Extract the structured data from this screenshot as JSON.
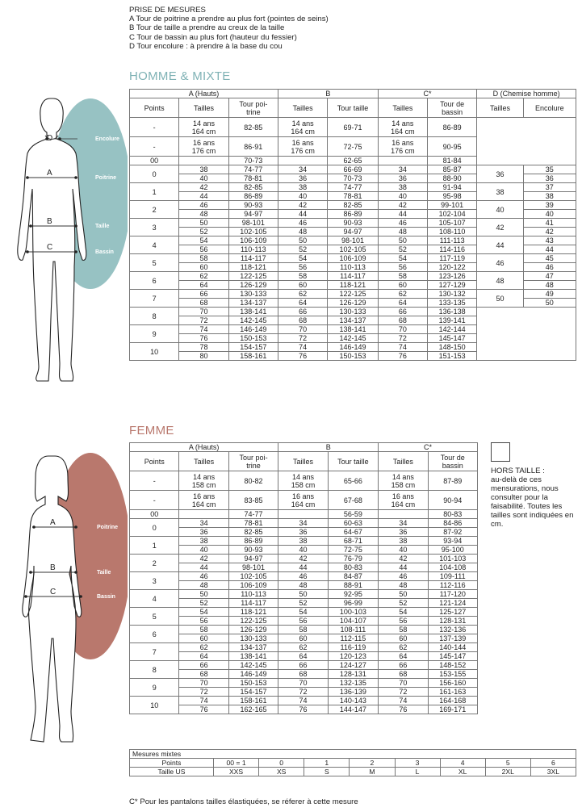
{
  "intro": {
    "title": "PRISE DE MESURES",
    "lines": [
      "A Tour de poitrine a prendre au plus fort (pointes de seins)",
      "B Tour de taille a prendre au creux de la taille",
      "C Tour de bassin au plus fort (hauteur du fessier)",
      "D Tour encolure : à prendre à la base du cou"
    ]
  },
  "homme": {
    "title": "HOMME & MIXTE",
    "group_headers": [
      "A (Hauts)",
      "B",
      "C*",
      "D (Chemise homme)"
    ],
    "col_headers": [
      "Points",
      "Tailles",
      "Tour poi-\ntrine",
      "Tailles",
      "Tour taille",
      "Tailles",
      "Tour de\nbassin",
      "Tailles",
      "Encolure"
    ],
    "figure_labels": {
      "d": "D",
      "a": "A",
      "b": "B",
      "c": "C",
      "encolure": "Encolure",
      "poitrine": "Poitrine",
      "taille": "Taille",
      "bassin": "Bassin"
    },
    "kids": [
      {
        "points": "-",
        "t1": "14 ans\n164 cm",
        "poitrine": "82-85",
        "t2": "14 ans\n164 cm",
        "taille": "69-71",
        "t3": "14 ans\n164 cm",
        "bassin": "86-89"
      },
      {
        "points": "-",
        "t1": "16 ans\n176 cm",
        "poitrine": "86-91",
        "t2": "16 ans\n176 cm",
        "taille": "72-75",
        "t3": "16 ans\n176 cm",
        "bassin": "90-95"
      }
    ],
    "row00": {
      "points": "00",
      "poitrine": "70-73",
      "taille": "62-65",
      "bassin": "81-84"
    },
    "groups": [
      {
        "points": "0",
        "rows": [
          [
            "38",
            "74-77",
            "34",
            "66-69",
            "34",
            "85-87"
          ],
          [
            "40",
            "78-81",
            "36",
            "70-73",
            "36",
            "88-90"
          ]
        ],
        "d_taille": "36",
        "enc": [
          "35",
          "36"
        ]
      },
      {
        "points": "1",
        "rows": [
          [
            "42",
            "82-85",
            "38",
            "74-77",
            "38",
            "91-94"
          ],
          [
            "44",
            "86-89",
            "40",
            "78-81",
            "40",
            "95-98"
          ]
        ],
        "d_taille": "38",
        "enc": [
          "37",
          "38"
        ]
      },
      {
        "points": "2",
        "rows": [
          [
            "46",
            "90-93",
            "42",
            "82-85",
            "42",
            "99-101"
          ],
          [
            "48",
            "94-97",
            "44",
            "86-89",
            "44",
            "102-104"
          ]
        ],
        "d_taille": "40",
        "enc": [
          "39",
          "40"
        ]
      },
      {
        "points": "3",
        "rows": [
          [
            "50",
            "98-101",
            "46",
            "90-93",
            "46",
            "105-107"
          ],
          [
            "52",
            "102-105",
            "48",
            "94-97",
            "48",
            "108-110"
          ]
        ],
        "d_taille": "42",
        "enc": [
          "41",
          "42"
        ]
      },
      {
        "points": "4",
        "rows": [
          [
            "54",
            "106-109",
            "50",
            "98-101",
            "50",
            "111-113"
          ],
          [
            "56",
            "110-113",
            "52",
            "102-105",
            "52",
            "114-116"
          ]
        ],
        "d_taille": "44",
        "enc": [
          "43",
          "44"
        ]
      },
      {
        "points": "5",
        "rows": [
          [
            "58",
            "114-117",
            "54",
            "106-109",
            "54",
            "117-119"
          ],
          [
            "60",
            "118-121",
            "56",
            "110-113",
            "56",
            "120-122"
          ]
        ],
        "d_taille": "46",
        "enc": [
          "45",
          "46"
        ]
      },
      {
        "points": "6",
        "rows": [
          [
            "62",
            "122-125",
            "58",
            "114-117",
            "58",
            "123-126"
          ],
          [
            "64",
            "126-129",
            "60",
            "118-121",
            "60",
            "127-129"
          ]
        ],
        "d_taille": "48",
        "enc": [
          "47",
          "48"
        ]
      },
      {
        "points": "7",
        "rows": [
          [
            "66",
            "130-133",
            "62",
            "122-125",
            "62",
            "130-132"
          ],
          [
            "68",
            "134-137",
            "64",
            "126-129",
            "64",
            "133-135"
          ]
        ],
        "d_taille": "50",
        "enc": [
          "49",
          "50"
        ]
      },
      {
        "points": "8",
        "rows": [
          [
            "70",
            "138-141",
            "66",
            "130-133",
            "66",
            "136-138"
          ],
          [
            "72",
            "142-145",
            "68",
            "134-137",
            "68",
            "139-141"
          ]
        ]
      },
      {
        "points": "9",
        "rows": [
          [
            "74",
            "146-149",
            "70",
            "138-141",
            "70",
            "142-144"
          ],
          [
            "76",
            "150-153",
            "72",
            "142-145",
            "72",
            "145-147"
          ]
        ]
      },
      {
        "points": "10",
        "rows": [
          [
            "78",
            "154-157",
            "74",
            "146-149",
            "74",
            "148-150"
          ],
          [
            "80",
            "158-161",
            "76",
            "150-153",
            "76",
            "151-153"
          ]
        ]
      }
    ]
  },
  "femme": {
    "title": "FEMME",
    "group_headers": [
      "A (Hauts)",
      "B",
      "C*"
    ],
    "col_headers": [
      "Points",
      "Tailles",
      "Tour poi-\ntrine",
      "Tailles",
      "Tour taille",
      "Tailles",
      "Tour de\nbassin"
    ],
    "figure_labels": {
      "a": "A",
      "b": "B",
      "c": "C",
      "poitrine": "Poitrine",
      "taille": "Taille",
      "bassin": "Bassin"
    },
    "kids": [
      {
        "points": "-",
        "t1": "14 ans\n158 cm",
        "poitrine": "80-82",
        "t2": "14 ans\n158 cm",
        "taille": "65-66",
        "t3": "14 ans\n158 cm",
        "bassin": "87-89"
      },
      {
        "points": "-",
        "t1": "16 ans\n164 cm",
        "poitrine": "83-85",
        "t2": "16 ans\n164 cm",
        "taille": "67-68",
        "t3": "16 ans\n164 cm",
        "bassin": "90-94"
      }
    ],
    "row00": {
      "points": "00",
      "poitrine": "74-77",
      "taille": "56-59",
      "bassin": "80-83"
    },
    "groups": [
      {
        "points": "0",
        "rows": [
          [
            "34",
            "78-81",
            "34",
            "60-63",
            "34",
            "84-86"
          ],
          [
            "36",
            "82-85",
            "36",
            "64-67",
            "36",
            "87-92"
          ]
        ]
      },
      {
        "points": "1",
        "rows": [
          [
            "38",
            "86-89",
            "38",
            "68-71",
            "38",
            "93-94"
          ],
          [
            "40",
            "90-93",
            "40",
            "72-75",
            "40",
            "95-100"
          ]
        ]
      },
      {
        "points": "2",
        "rows": [
          [
            "42",
            "94-97",
            "42",
            "76-79",
            "42",
            "101-103"
          ],
          [
            "44",
            "98-101",
            "44",
            "80-83",
            "44",
            "104-108"
          ]
        ]
      },
      {
        "points": "3",
        "rows": [
          [
            "46",
            "102-105",
            "46",
            "84-87",
            "46",
            "109-111"
          ],
          [
            "48",
            "106-109",
            "48",
            "88-91",
            "48",
            "112-116"
          ]
        ]
      },
      {
        "points": "4",
        "rows": [
          [
            "50",
            "110-113",
            "50",
            "92-95",
            "50",
            "117-120"
          ],
          [
            "52",
            "114-117",
            "52",
            "96-99",
            "52",
            "121-124"
          ]
        ]
      },
      {
        "points": "5",
        "rows": [
          [
            "54",
            "118-121",
            "54",
            "100-103",
            "54",
            "125-127"
          ],
          [
            "56",
            "122-125",
            "56",
            "104-107",
            "56",
            "128-131"
          ]
        ]
      },
      {
        "points": "6",
        "rows": [
          [
            "58",
            "126-129",
            "58",
            "108-111",
            "58",
            "132-136"
          ],
          [
            "60",
            "130-133",
            "60",
            "112-115",
            "60",
            "137-139"
          ]
        ]
      },
      {
        "points": "7",
        "rows": [
          [
            "62",
            "134-137",
            "62",
            "116-119",
            "62",
            "140-144"
          ],
          [
            "64",
            "138-141",
            "64",
            "120-123",
            "64",
            "145-147"
          ]
        ]
      },
      {
        "points": "8",
        "rows": [
          [
            "66",
            "142-145",
            "66",
            "124-127",
            "66",
            "148-152"
          ],
          [
            "68",
            "146-149",
            "68",
            "128-131",
            "68",
            "153-155"
          ]
        ]
      },
      {
        "points": "9",
        "rows": [
          [
            "70",
            "150-153",
            "70",
            "132-135",
            "70",
            "156-160"
          ],
          [
            "72",
            "154-157",
            "72",
            "136-139",
            "72",
            "161-163"
          ]
        ]
      },
      {
        "points": "10",
        "rows": [
          [
            "74",
            "158-161",
            "74",
            "140-143",
            "74",
            "164-168"
          ],
          [
            "76",
            "162-165",
            "76",
            "144-147",
            "76",
            "169-171"
          ]
        ]
      }
    ]
  },
  "hors_taille": {
    "title": "HORS TAILLE :",
    "text": "au-delà de ces mensurations, nous consulter pour la faisabilité. Toutes les tailles sont indiquées en cm."
  },
  "mesures_mixtes": {
    "title": "Mesures mixtes",
    "points_label": "Points",
    "us_label": "Taille US",
    "points": [
      "00 = 1",
      "0",
      "1",
      "2",
      "3",
      "4",
      "5",
      "6"
    ],
    "us": [
      "XXS",
      "XS",
      "S",
      "M",
      "L",
      "XL",
      "2XL",
      "3XL"
    ]
  },
  "footnote": "C* Pour les pantalons tailles élastiquées, se réferer à cette mesure",
  "colors": {
    "homme_accent": "#7fb2b5",
    "femme_accent": "#b9786d"
  }
}
